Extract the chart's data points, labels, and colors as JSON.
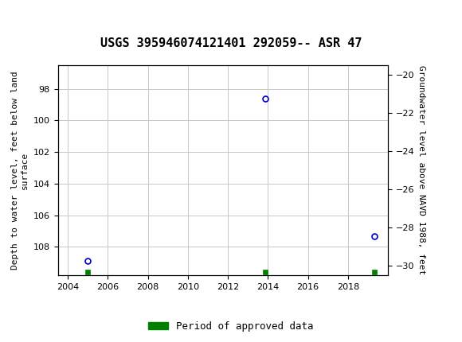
{
  "title": "USGS 395946074121401 292059-- ASR 47",
  "ylabel_left": "Depth to water level, feet below land\nsurface",
  "ylabel_right": "Groundwater level above NAVD 1988, feet",
  "xlim": [
    2003.5,
    2020
  ],
  "ylim_left_top": 96.5,
  "ylim_left_bottom": 109.8,
  "ylim_right_top": -19.5,
  "ylim_right_bottom": -30.5,
  "xticks": [
    2004,
    2006,
    2008,
    2010,
    2012,
    2014,
    2016,
    2018
  ],
  "yticks_left": [
    98,
    100,
    102,
    104,
    106,
    108
  ],
  "yticks_right": [
    -20,
    -22,
    -24,
    -26,
    -28,
    -30
  ],
  "blue_points_x": [
    2005.0,
    2013.85,
    2019.3
  ],
  "blue_points_y": [
    108.9,
    98.65,
    107.35
  ],
  "green_points_x": [
    2005.0,
    2013.85,
    2019.3
  ],
  "green_points_y": [
    109.6,
    109.6,
    109.6
  ],
  "header_color": "#1a6b3c",
  "grid_color": "#c8c8c8",
  "point_color": "#0000cc",
  "approved_color": "#008000",
  "background_color": "#ffffff",
  "plot_bg_color": "#ffffff",
  "title_fontsize": 11,
  "axis_label_fontsize": 8,
  "tick_fontsize": 8,
  "legend_fontsize": 9,
  "legend_label": "Period of approved data"
}
